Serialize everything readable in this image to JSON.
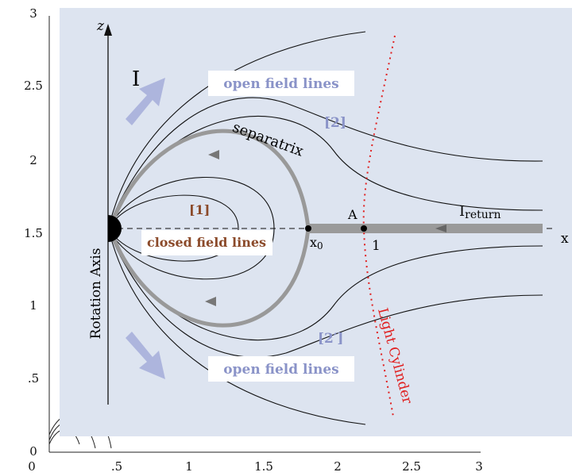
{
  "left_ticks": [
    "3",
    "2.5",
    "2",
    "1.5",
    "1",
    ".5",
    "0"
  ],
  "bottom_ticks": [
    "0",
    ".5",
    "1",
    "1.5",
    "2",
    "2.5",
    "3"
  ],
  "labels": {
    "z_axis": "z",
    "x_axis": "x",
    "current": "I",
    "return_current": {
      "text": "I",
      "sub": "return"
    },
    "rotation_axis": "Rotation Axis",
    "separatrix": "separatrix",
    "light_cylinder": "Light Cylinder",
    "point_a": "A",
    "point_one": "1",
    "x0": {
      "text": "x",
      "sub": "0"
    },
    "region_1": "[1]",
    "region_2": "[2]",
    "region_2p": "[2′]",
    "open_top": "open field lines",
    "open_bottom": "open field lines",
    "closed": "closed field lines"
  }
}
